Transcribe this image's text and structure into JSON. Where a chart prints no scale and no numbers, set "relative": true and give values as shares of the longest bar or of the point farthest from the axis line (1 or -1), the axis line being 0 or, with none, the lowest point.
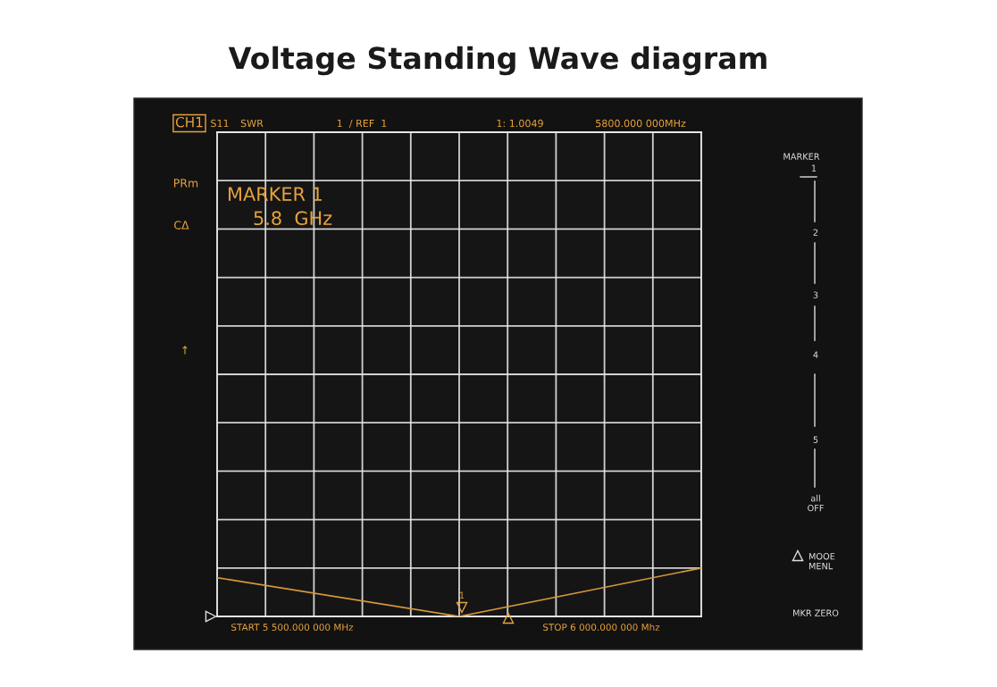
{
  "chart_data": {
    "type": "line",
    "title": "Voltage Standing Wave diagram",
    "categories": [
      null,
      null,
      null
    ],
    "relative": true,
    "series": [
      {
        "color": "#d8983a",
        "values": [
          0.8,
          0,
          1
        ]
      }
    ],
    "grid": true,
    "marker": "none",
    "line_style": "solid",
    "annotations": [
      "CH1",
      "S11",
      "SWR",
      "1  / REF  1",
      "1: 1.0049",
      "5800.000 000MHz",
      "PRm",
      "MARKER 1",
      "5.8  GHz",
      "CΔ",
      "↑",
      "START 5 500.000 000 MHz",
      "STOP 6 000.000 000 Mhz",
      "MARKER",
      "1",
      "2",
      "3",
      "4",
      "5",
      "all\nOFF",
      "MOOE\nMENL",
      "MKR ZERO",
      "1"
    ]
  }
}
